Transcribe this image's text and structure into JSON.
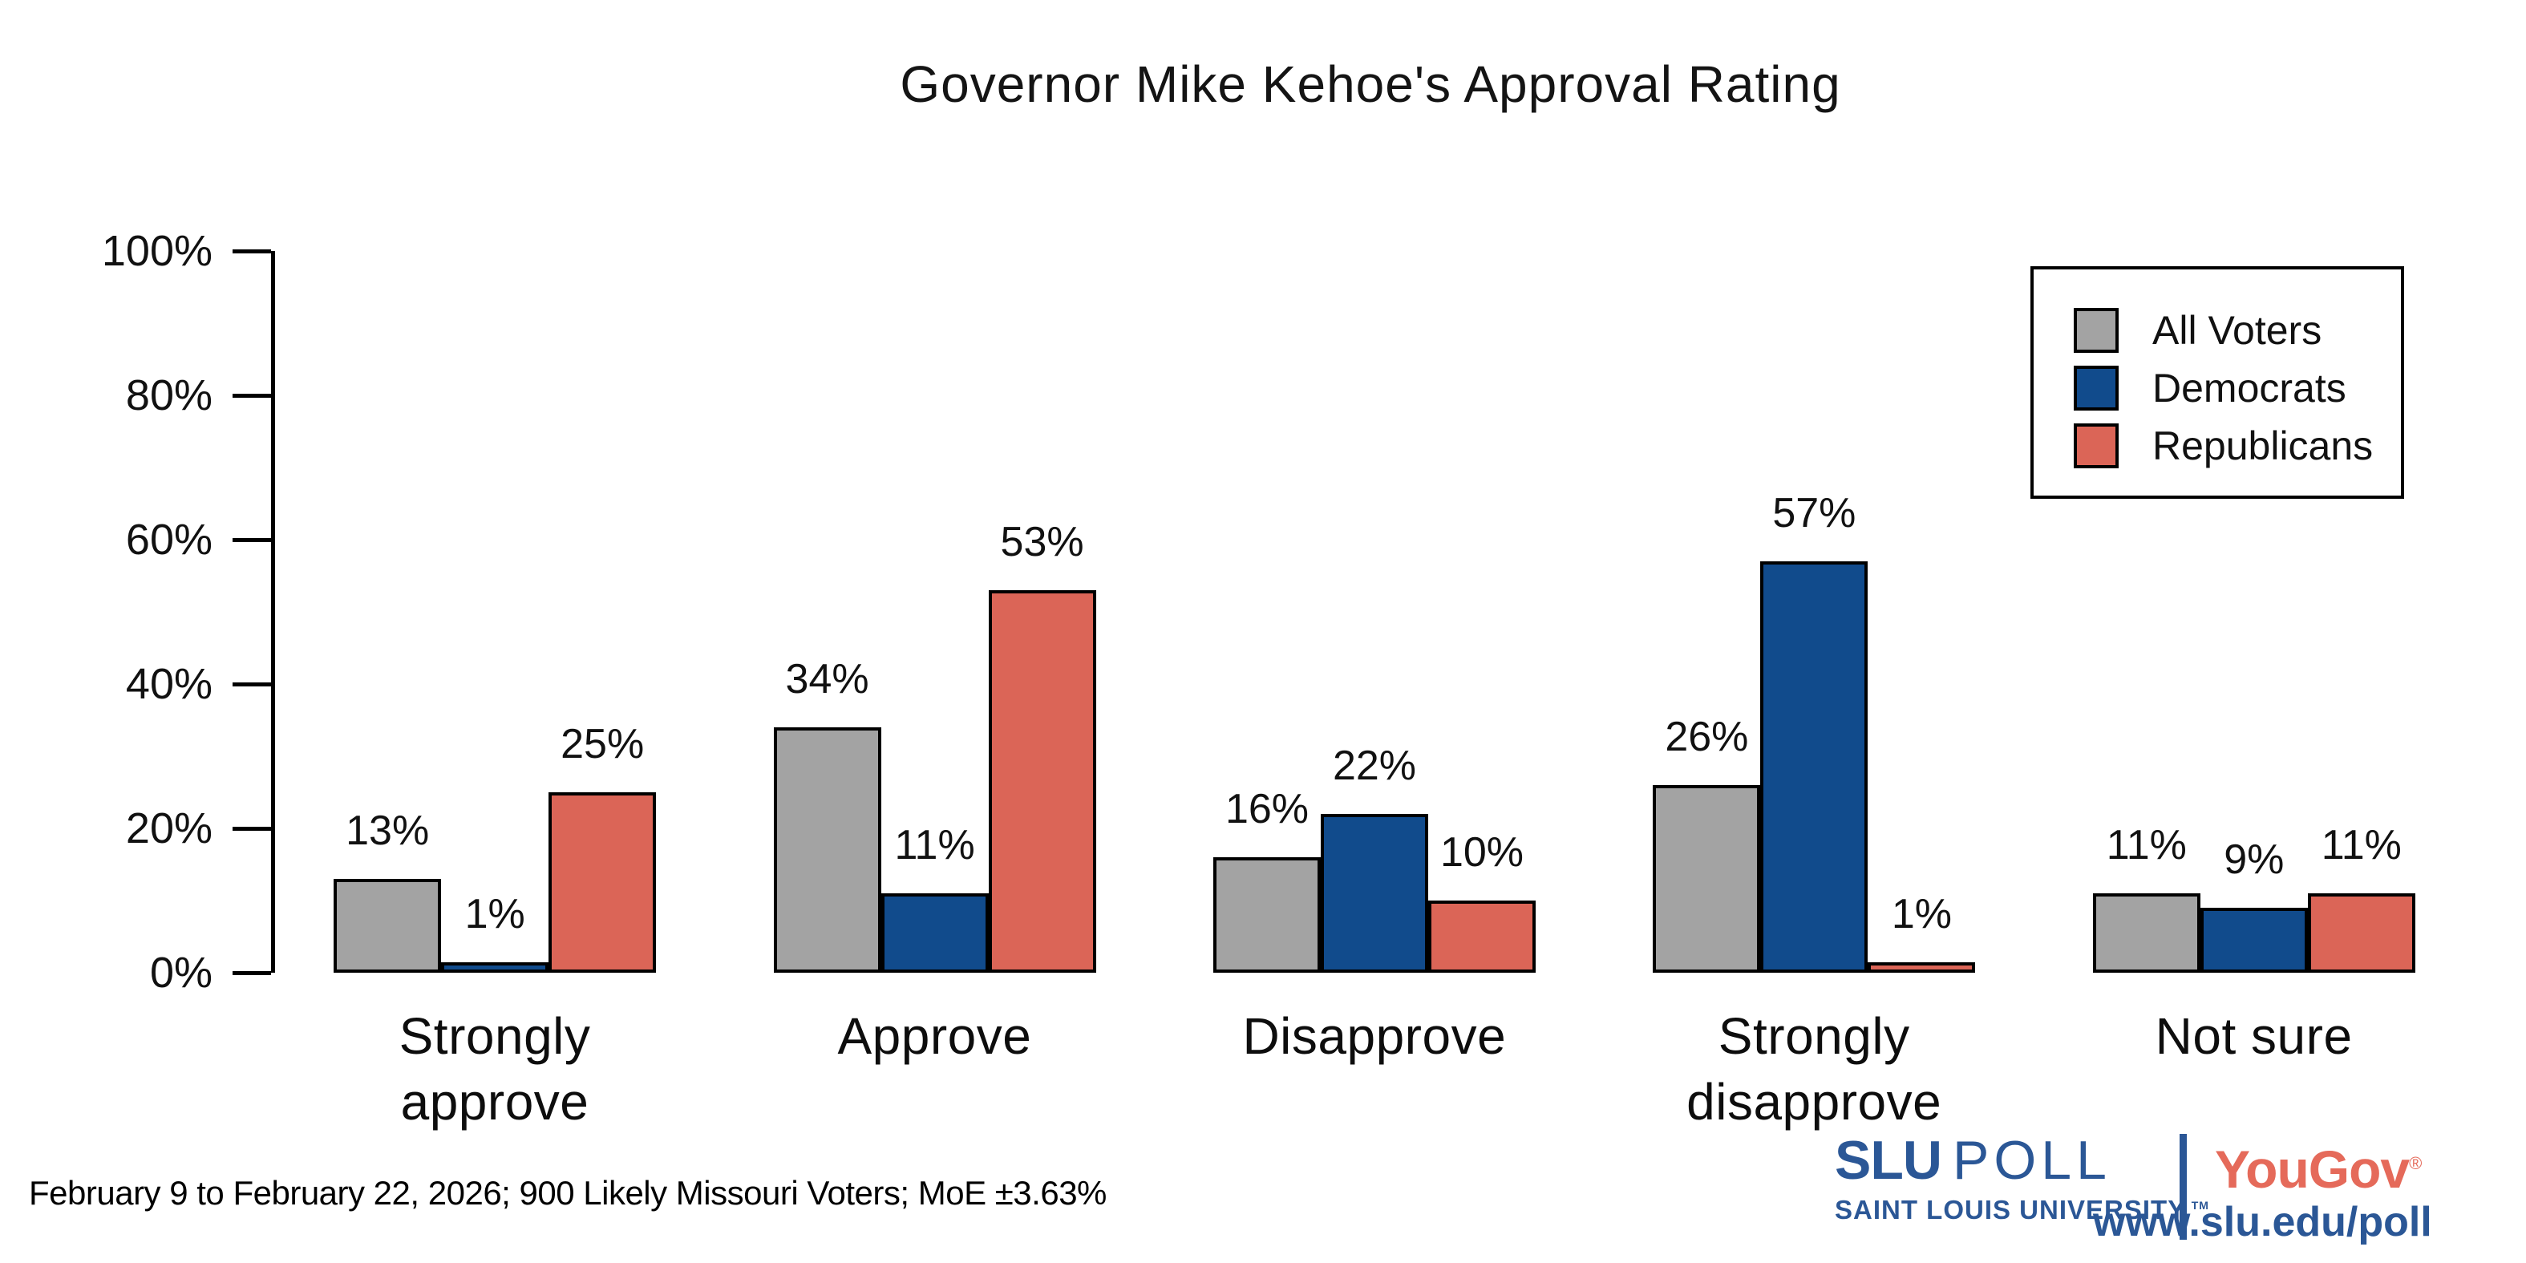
{
  "title": "Governor Mike Kehoe's Approval Rating",
  "chart_data": {
    "type": "bar",
    "title": "Governor Mike Kehoe's Approval Rating",
    "categories": [
      "Strongly approve",
      "Approve",
      "Disapprove",
      "Strongly disapprove",
      "Not sure"
    ],
    "category_display": [
      "Strongly\napprove",
      "Approve",
      "Disapprove",
      "Strongly\ndisapprove",
      "Not sure"
    ],
    "series": [
      {
        "name": "All Voters",
        "color": "#a3a3a3",
        "values": [
          13,
          34,
          16,
          26,
          11
        ]
      },
      {
        "name": "Democrats",
        "color": "#114b8c",
        "values": [
          1,
          11,
          22,
          57,
          9
        ]
      },
      {
        "name": "Republicans",
        "color": "#db6557",
        "values": [
          25,
          53,
          10,
          1,
          11
        ]
      }
    ],
    "xlabel": "",
    "ylabel": "",
    "ylim": [
      0,
      100
    ],
    "yticks": [
      0,
      20,
      40,
      60,
      80,
      100
    ],
    "ytick_format": "{v}%",
    "value_label_format": "{v}%",
    "grid": false,
    "legend_position": "upper right",
    "bar_outline_color": "#000000"
  },
  "footer": {
    "note": "February 9 to February 22, 2026; 900 Likely Missouri Voters; MoE ±3.63%"
  },
  "branding": {
    "slu": "SLU",
    "poll": "POLL",
    "university": "SAINT LOUIS UNIVERSITY.",
    "trademark": "TM",
    "yougov": "YouGov",
    "registered": "®",
    "url": "www.slu.edu/poll",
    "slu_blue": "#2b5796",
    "yougov_red": "#e56a5a"
  }
}
